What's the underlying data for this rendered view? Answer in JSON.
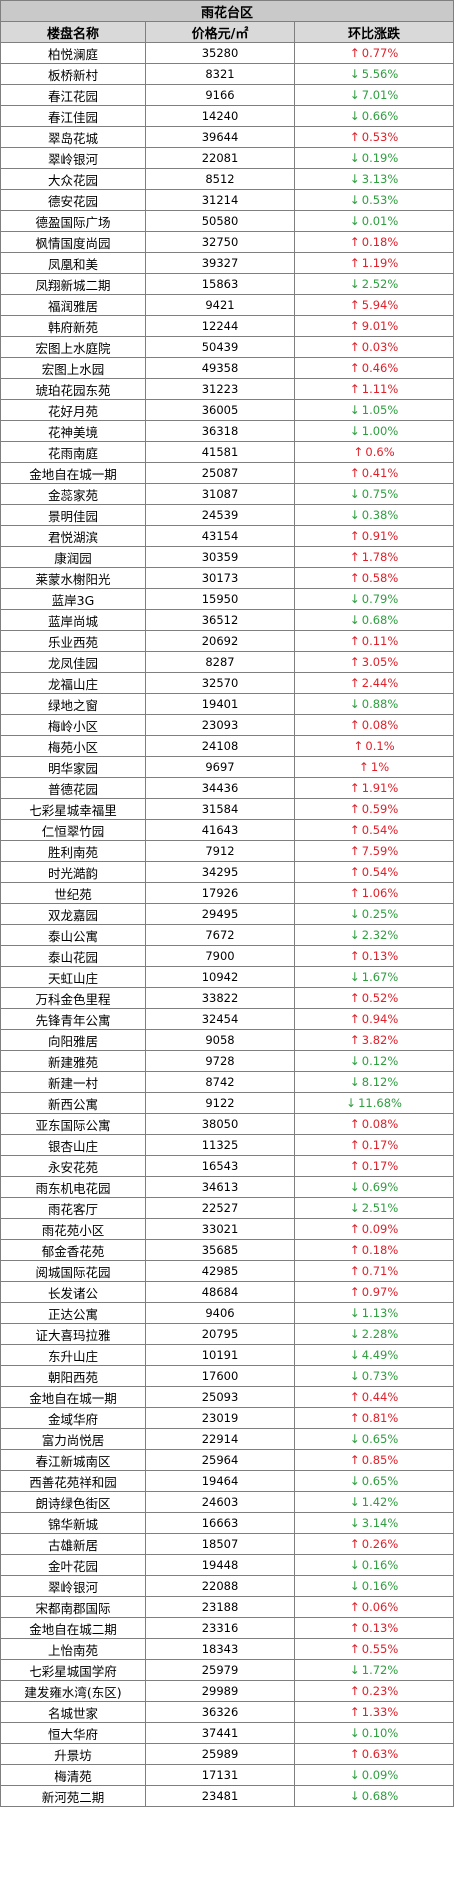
{
  "colors": {
    "up": "#e0202a",
    "down": "#2e9e3f"
  },
  "table": {
    "district": "雨花台区",
    "headers": {
      "name": "楼盘名称",
      "price": "价格元/㎡",
      "change": "环比涨跌"
    },
    "rows": [
      {
        "name": "柏悦澜庭",
        "price": "35280",
        "dir": "up",
        "change": "0.77%"
      },
      {
        "name": "板桥新村",
        "price": "8321",
        "dir": "down",
        "change": "5.56%"
      },
      {
        "name": "春江花园",
        "price": "9166",
        "dir": "down",
        "change": "7.01%"
      },
      {
        "name": "春江佳园",
        "price": "14240",
        "dir": "down",
        "change": "0.66%"
      },
      {
        "name": "翠岛花城",
        "price": "39644",
        "dir": "up",
        "change": "0.53%"
      },
      {
        "name": "翠岭银河",
        "price": "22081",
        "dir": "down",
        "change": "0.19%"
      },
      {
        "name": "大众花园",
        "price": "8512",
        "dir": "down",
        "change": "3.13%"
      },
      {
        "name": "德安花园",
        "price": "31214",
        "dir": "down",
        "change": "0.53%"
      },
      {
        "name": "德盈国际广场",
        "price": "50580",
        "dir": "down",
        "change": "0.01%"
      },
      {
        "name": "枫情国度尚园",
        "price": "32750",
        "dir": "up",
        "change": "0.18%"
      },
      {
        "name": "凤凰和美",
        "price": "39327",
        "dir": "up",
        "change": "1.19%"
      },
      {
        "name": "凤翔新城二期",
        "price": "15863",
        "dir": "down",
        "change": "2.52%"
      },
      {
        "name": "福润雅居",
        "price": "9421",
        "dir": "up",
        "change": "5.94%"
      },
      {
        "name": "韩府新苑",
        "price": "12244",
        "dir": "up",
        "change": "9.01%"
      },
      {
        "name": "宏图上水庭院",
        "price": "50439",
        "dir": "up",
        "change": "0.03%"
      },
      {
        "name": "宏图上水园",
        "price": "49358",
        "dir": "up",
        "change": "0.46%"
      },
      {
        "name": "琥珀花园东苑",
        "price": "31223",
        "dir": "up",
        "change": "1.11%"
      },
      {
        "name": "花好月苑",
        "price": "36005",
        "dir": "down",
        "change": "1.05%"
      },
      {
        "name": "花神美境",
        "price": "36318",
        "dir": "down",
        "change": "1.00%"
      },
      {
        "name": "花雨南庭",
        "price": "41581",
        "dir": "up",
        "change": "0.6%"
      },
      {
        "name": "金地自在城一期",
        "price": "25087",
        "dir": "up",
        "change": "0.41%"
      },
      {
        "name": "金蕊家苑",
        "price": "31087",
        "dir": "down",
        "change": "0.75%"
      },
      {
        "name": "景明佳园",
        "price": "24539",
        "dir": "down",
        "change": "0.38%"
      },
      {
        "name": "君悦湖滨",
        "price": "43154",
        "dir": "up",
        "change": "0.91%"
      },
      {
        "name": "康润园",
        "price": "30359",
        "dir": "up",
        "change": "1.78%"
      },
      {
        "name": "莱蒙水榭阳光",
        "price": "30173",
        "dir": "up",
        "change": "0.58%"
      },
      {
        "name": "蓝岸3G",
        "price": "15950",
        "dir": "down",
        "change": "0.79%"
      },
      {
        "name": "蓝岸尚城",
        "price": "36512",
        "dir": "down",
        "change": "0.68%"
      },
      {
        "name": "乐业西苑",
        "price": "20692",
        "dir": "up",
        "change": "0.11%"
      },
      {
        "name": "龙凤佳园",
        "price": "8287",
        "dir": "up",
        "change": "3.05%"
      },
      {
        "name": "龙福山庄",
        "price": "32570",
        "dir": "up",
        "change": "2.44%"
      },
      {
        "name": "绿地之窗",
        "price": "19401",
        "dir": "down",
        "change": "0.88%"
      },
      {
        "name": "梅岭小区",
        "price": "23093",
        "dir": "up",
        "change": "0.08%"
      },
      {
        "name": "梅苑小区",
        "price": "24108",
        "dir": "up",
        "change": "0.1%"
      },
      {
        "name": "明华家园",
        "price": "9697",
        "dir": "up",
        "change": "1%"
      },
      {
        "name": "普德花园",
        "price": "34436",
        "dir": "up",
        "change": "1.91%"
      },
      {
        "name": "七彩星城幸福里",
        "price": "31584",
        "dir": "up",
        "change": "0.59%"
      },
      {
        "name": "仁恒翠竹园",
        "price": "41643",
        "dir": "up",
        "change": "0.54%"
      },
      {
        "name": "胜利南苑",
        "price": "7912",
        "dir": "up",
        "change": "7.59%"
      },
      {
        "name": "时光澔韵",
        "price": "34295",
        "dir": "up",
        "change": "0.54%"
      },
      {
        "name": "世纪苑",
        "price": "17926",
        "dir": "up",
        "change": "1.06%"
      },
      {
        "name": "双龙嘉园",
        "price": "29495",
        "dir": "down",
        "change": "0.25%"
      },
      {
        "name": "泰山公寓",
        "price": "7672",
        "dir": "down",
        "change": "2.32%"
      },
      {
        "name": "泰山花园",
        "price": "7900",
        "dir": "up",
        "change": "0.13%"
      },
      {
        "name": "天虹山庄",
        "price": "10942",
        "dir": "down",
        "change": "1.67%"
      },
      {
        "name": "万科金色里程",
        "price": "33822",
        "dir": "up",
        "change": "0.52%"
      },
      {
        "name": "先锋青年公寓",
        "price": "32454",
        "dir": "up",
        "change": "0.94%"
      },
      {
        "name": "向阳雅居",
        "price": "9058",
        "dir": "up",
        "change": "3.82%"
      },
      {
        "name": "新建雅苑",
        "price": "9728",
        "dir": "down",
        "change": "0.12%"
      },
      {
        "name": "新建一村",
        "price": "8742",
        "dir": "down",
        "change": "8.12%"
      },
      {
        "name": "新西公寓",
        "price": "9122",
        "dir": "down",
        "change": "11.68%"
      },
      {
        "name": "亚东国际公寓",
        "price": "38050",
        "dir": "up",
        "change": "0.08%"
      },
      {
        "name": "银杏山庄",
        "price": "11325",
        "dir": "up",
        "change": "0.17%"
      },
      {
        "name": "永安花苑",
        "price": "16543",
        "dir": "up",
        "change": "0.17%"
      },
      {
        "name": "雨东机电花园",
        "price": "34613",
        "dir": "down",
        "change": "0.69%"
      },
      {
        "name": "雨花客厅",
        "price": "22527",
        "dir": "down",
        "change": "2.51%"
      },
      {
        "name": "雨花苑小区",
        "price": "33021",
        "dir": "up",
        "change": "0.09%"
      },
      {
        "name": "郁金香花苑",
        "price": "35685",
        "dir": "up",
        "change": "0.18%"
      },
      {
        "name": "阅城国际花园",
        "price": "42985",
        "dir": "up",
        "change": "0.71%"
      },
      {
        "name": "长发诸公",
        "price": "48684",
        "dir": "up",
        "change": "0.97%"
      },
      {
        "name": "正达公寓",
        "price": "9406",
        "dir": "down",
        "change": "1.13%"
      },
      {
        "name": "证大喜玛拉雅",
        "price": "20795",
        "dir": "down",
        "change": "2.28%"
      },
      {
        "name": "东升山庄",
        "price": "10191",
        "dir": "down",
        "change": "4.49%"
      },
      {
        "name": "朝阳西苑",
        "price": "17600",
        "dir": "down",
        "change": "0.73%"
      },
      {
        "name": "金地自在城一期",
        "price": "25093",
        "dir": "up",
        "change": "0.44%"
      },
      {
        "name": "金域华府",
        "price": "23019",
        "dir": "up",
        "change": "0.81%"
      },
      {
        "name": "富力尚悦居",
        "price": "22914",
        "dir": "down",
        "change": "0.65%"
      },
      {
        "name": "春江新城南区",
        "price": "25964",
        "dir": "up",
        "change": "0.85%"
      },
      {
        "name": "西善花苑祥和园",
        "price": "19464",
        "dir": "down",
        "change": "0.65%"
      },
      {
        "name": "朗诗绿色街区",
        "price": "24603",
        "dir": "down",
        "change": "1.42%"
      },
      {
        "name": "锦华新城",
        "price": "16663",
        "dir": "down",
        "change": "3.14%"
      },
      {
        "name": "古雄新居",
        "price": "18507",
        "dir": "up",
        "change": "0.26%"
      },
      {
        "name": "金叶花园",
        "price": "19448",
        "dir": "down",
        "change": "0.16%"
      },
      {
        "name": "翠岭银河",
        "price": "22088",
        "dir": "down",
        "change": "0.16%"
      },
      {
        "name": "宋都南郡国际",
        "price": "23188",
        "dir": "up",
        "change": "0.06%"
      },
      {
        "name": "金地自在城二期",
        "price": "23316",
        "dir": "up",
        "change": "0.13%"
      },
      {
        "name": "上怡南苑",
        "price": "18343",
        "dir": "up",
        "change": "0.55%"
      },
      {
        "name": "七彩星城国学府",
        "price": "25979",
        "dir": "down",
        "change": "1.72%"
      },
      {
        "name": "建发雍水湾(东区)",
        "price": "29989",
        "dir": "up",
        "change": "0.23%"
      },
      {
        "name": "名城世家",
        "price": "36326",
        "dir": "up",
        "change": "1.33%"
      },
      {
        "name": "恒大华府",
        "price": "37441",
        "dir": "down",
        "change": "0.10%"
      },
      {
        "name": "升景坊",
        "price": "25989",
        "dir": "up",
        "change": "0.63%"
      },
      {
        "name": "梅清苑",
        "price": "17131",
        "dir": "down",
        "change": "0.09%"
      },
      {
        "name": "新河苑二期",
        "price": "23481",
        "dir": "down",
        "change": "0.68%"
      }
    ]
  }
}
